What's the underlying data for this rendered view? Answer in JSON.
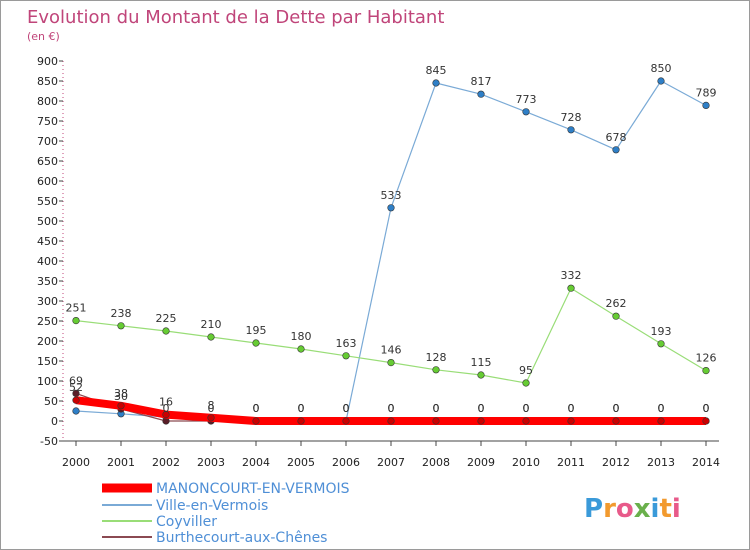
{
  "chart_data": {
    "type": "line",
    "title": "Evolution du Montant de la Dette par Habitant",
    "subtitle": "(en €)",
    "x": [
      "2000",
      "2001",
      "2002",
      "2003",
      "2004",
      "2005",
      "2006",
      "2007",
      "2008",
      "2009",
      "2010",
      "2011",
      "2012",
      "2013",
      "2014"
    ],
    "ylim": [
      -50,
      900
    ],
    "yticks": [
      -50,
      0,
      50,
      100,
      150,
      200,
      250,
      300,
      350,
      400,
      450,
      500,
      550,
      600,
      650,
      700,
      750,
      800,
      850,
      900
    ],
    "ytick_labels": [
      "-50",
      "0",
      "50",
      "100",
      "150",
      "200",
      "250",
      "300",
      "350",
      "400",
      "450",
      "500",
      "550",
      "600",
      "650",
      "700",
      "750",
      "800",
      "850",
      "900"
    ],
    "grid": false,
    "legend_position": "bottom-left",
    "series": [
      {
        "name": "MANONCOURT-EN-VERMOIS",
        "color": "#ff0000",
        "marker": "#cc0000",
        "width": 8,
        "values": [
          52,
          38,
          16,
          8,
          0,
          0,
          0,
          0,
          0,
          0,
          0,
          0,
          0,
          0,
          0
        ],
        "labels": [
          "52",
          "38",
          "16",
          "8",
          "0",
          "0",
          "0",
          "0",
          "0",
          "0",
          "0",
          "0",
          "0",
          "0",
          "0"
        ]
      },
      {
        "name": "Ville-en-Vermois",
        "color": "#7aaad6",
        "marker": "#2e7fc7",
        "width": 1.2,
        "values": [
          25,
          18,
          10,
          5,
          0,
          0,
          0,
          533,
          845,
          817,
          773,
          728,
          678,
          850,
          789
        ],
        "labels": [
          "",
          "",
          "",
          "",
          "",
          "",
          "",
          "533",
          "845",
          "817",
          "773",
          "728",
          "678",
          "850",
          "789"
        ]
      },
      {
        "name": "Coyviller",
        "color": "#99dd77",
        "marker": "#66cc33",
        "width": 1.2,
        "values": [
          251,
          238,
          225,
          210,
          195,
          180,
          163,
          146,
          128,
          115,
          95,
          332,
          262,
          193,
          126
        ],
        "labels": [
          "251",
          "238",
          "225",
          "210",
          "195",
          "180",
          "163",
          "146",
          "128",
          "115",
          "95",
          "332",
          "262",
          "193",
          "126"
        ]
      },
      {
        "name": "Burthecourt-aux-Chênes",
        "color": "#8b4a52",
        "marker": "#5a1e28",
        "width": 1.2,
        "values": [
          69,
          30,
          0,
          0,
          0,
          0,
          0,
          0,
          0,
          0,
          0,
          0,
          0,
          0,
          0
        ],
        "labels": [
          "69",
          "30",
          "0",
          "0",
          "0",
          "0",
          "0",
          "0",
          "0",
          "0",
          "0",
          "0",
          "0",
          "0",
          "0"
        ]
      }
    ]
  },
  "logo": {
    "text": "Proxiti",
    "colors": [
      "#3a9ad9",
      "#f29a2e",
      "#e85a8a",
      "#6ab04c",
      "#3a9ad9",
      "#f29a2e",
      "#e85a8a"
    ]
  }
}
